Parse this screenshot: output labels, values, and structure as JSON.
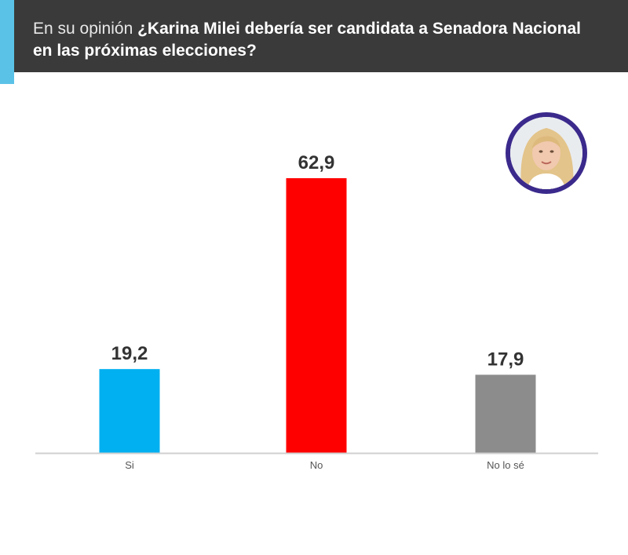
{
  "header": {
    "intro": "En su opinión",
    "question": "¿Karina Milei debería ser candidata a Senadora Nacional en las próximas elecciones?"
  },
  "chart_data": {
    "type": "bar",
    "categories": [
      "Si",
      "No",
      "No lo sé"
    ],
    "values": [
      19.2,
      62.9,
      17.9
    ],
    "value_labels": [
      "19,2",
      "62,9",
      "17,9"
    ],
    "colors": [
      "#00b0f0",
      "#ff0000",
      "#8c8c8c"
    ],
    "ylim": [
      0,
      62.9
    ],
    "grid": false,
    "title": "",
    "xlabel": "",
    "ylabel": ""
  },
  "avatar": {
    "icon": "woman-portrait-icon",
    "ring_color": "#3b2a8c"
  }
}
